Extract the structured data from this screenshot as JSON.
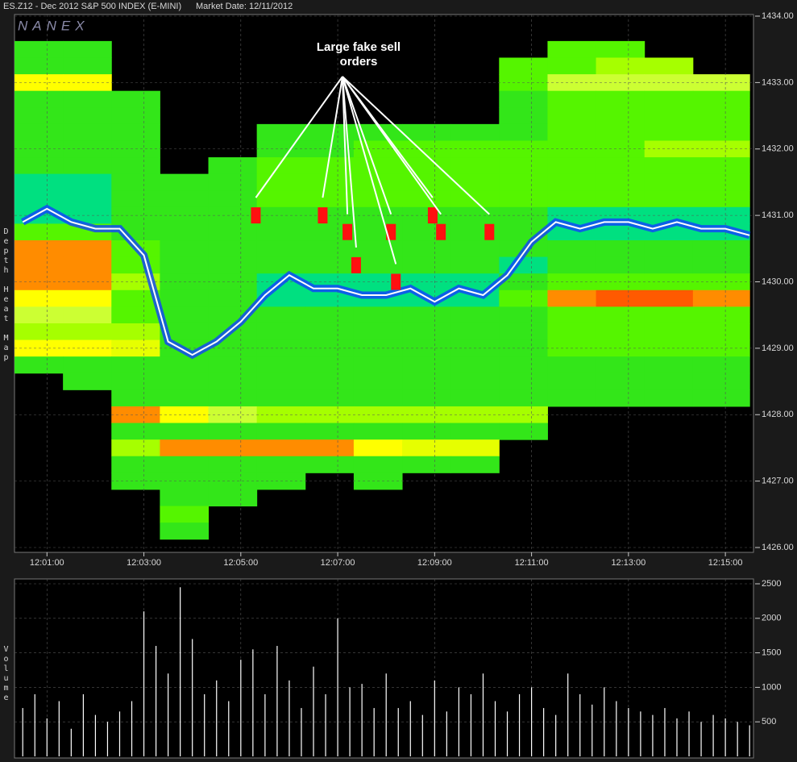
{
  "chart_data": [
    {
      "type": "heatmap",
      "title": "ES.Z12 - Dec 2012 S&P 500 INDEX (E-MINI)",
      "subtitle": "Market Date: 12/11/2012",
      "watermark": "NANEX",
      "y_label": "Depth Heat Map",
      "annotation": "Large fake sell orders",
      "xlim": [
        0.33,
        15.58
      ],
      "xticks": [
        {
          "value": 1,
          "label": "12:01:00"
        },
        {
          "value": 3,
          "label": "12:03:00"
        },
        {
          "value": 5,
          "label": "12:05:00"
        },
        {
          "value": 7,
          "label": "12:07:00"
        },
        {
          "value": 9,
          "label": "12:09:00"
        },
        {
          "value": 11,
          "label": "12:11:00"
        },
        {
          "value": 13,
          "label": "12:13:00"
        },
        {
          "value": 15,
          "label": "12:15:00"
        }
      ],
      "ylim": [
        1426,
        1434
      ],
      "yticks": [
        {
          "value": 1426,
          "label": "1426.00"
        },
        {
          "value": 1427,
          "label": "1427.00"
        },
        {
          "value": 1428,
          "label": "1428.00"
        },
        {
          "value": 1429,
          "label": "1429.00"
        },
        {
          "value": 1430,
          "label": "1430.00"
        },
        {
          "value": 1431,
          "label": "1431.00"
        },
        {
          "value": 1432,
          "label": "1432.00"
        },
        {
          "value": 1433,
          "label": "1433.00"
        },
        {
          "value": 1434,
          "label": "1434.00"
        }
      ],
      "grid": true,
      "x_edges": [
        0.33,
        1.33,
        2.33,
        3.33,
        4.33,
        5.33,
        6.33,
        7.33,
        8.33,
        9.33,
        10.33,
        11.33,
        12.33,
        13.33,
        14.33,
        15.5
      ],
      "levels": [
        1433.5,
        1433.25,
        1433.0,
        1432.75,
        1432.5,
        1432.25,
        1432.0,
        1431.75,
        1431.5,
        1431.25,
        1431.0,
        1430.75,
        1430.5,
        1430.25,
        1430.0,
        1429.75,
        1429.5,
        1429.25,
        1429.0,
        1428.75,
        1428.5,
        1428.25,
        1428.0,
        1427.75,
        1427.5,
        1427.25,
        1427.0,
        1426.75,
        1426.5,
        1426.25
      ],
      "zlim": [
        1,
        9
      ],
      "colorscale": [
        "#00e080",
        "#33e619",
        "#55f500",
        "#a6ff00",
        "#ccff33",
        "#e6ff00",
        "#ffff00",
        "#ff8c00",
        "#ff5a00"
      ],
      "z": [
        [
          2,
          2,
          null,
          null,
          null,
          null,
          null,
          null,
          null,
          null,
          null,
          3,
          3,
          null,
          null
        ],
        [
          2,
          2,
          null,
          null,
          null,
          null,
          null,
          null,
          null,
          null,
          3,
          3,
          4,
          4,
          null
        ],
        [
          7,
          7,
          null,
          null,
          null,
          null,
          null,
          null,
          null,
          null,
          3,
          5,
          5,
          5,
          5
        ],
        [
          2,
          2,
          2,
          null,
          null,
          null,
          null,
          null,
          null,
          null,
          2,
          3,
          3,
          3,
          3
        ],
        [
          2,
          2,
          2,
          null,
          null,
          null,
          null,
          null,
          null,
          null,
          2,
          3,
          3,
          3,
          3
        ],
        [
          2,
          2,
          2,
          null,
          null,
          2,
          2,
          2,
          2,
          2,
          2,
          3,
          3,
          3,
          3
        ],
        [
          2,
          2,
          2,
          null,
          null,
          2,
          2,
          3,
          3,
          3,
          3,
          3,
          3,
          4,
          4
        ],
        [
          2,
          2,
          2,
          null,
          2,
          3,
          3,
          3,
          3,
          3,
          3,
          3,
          3,
          3,
          3
        ],
        [
          1,
          1,
          2,
          2,
          2,
          3,
          3,
          3,
          3,
          3,
          3,
          3,
          3,
          3,
          3
        ],
        [
          1,
          1,
          2,
          2,
          2,
          3,
          3,
          3,
          3,
          3,
          3,
          3,
          3,
          3,
          3
        ],
        [
          1,
          1,
          2,
          2,
          2,
          2,
          2,
          2,
          2,
          2,
          2,
          1,
          1,
          1,
          1
        ],
        [
          3,
          3,
          2,
          2,
          2,
          2,
          2,
          2,
          2,
          2,
          2,
          1,
          1,
          1,
          1
        ],
        [
          8,
          8,
          3,
          2,
          2,
          2,
          2,
          2,
          2,
          2,
          2,
          2,
          2,
          2,
          2
        ],
        [
          8,
          8,
          3,
          2,
          2,
          2,
          2,
          2,
          2,
          2,
          1,
          2,
          2,
          2,
          2
        ],
        [
          8,
          8,
          4,
          2,
          2,
          1,
          1,
          1,
          1,
          1,
          2,
          3,
          3,
          3,
          3
        ],
        [
          7,
          7,
          3,
          2,
          2,
          1,
          1,
          1,
          1,
          1,
          3,
          8,
          9,
          9,
          8
        ],
        [
          5,
          5,
          3,
          2,
          2,
          2,
          2,
          2,
          2,
          2,
          2,
          3,
          3,
          3,
          3
        ],
        [
          4,
          4,
          4,
          2,
          2,
          2,
          2,
          2,
          2,
          2,
          2,
          3,
          3,
          3,
          3
        ],
        [
          7,
          7,
          6,
          2,
          2,
          2,
          2,
          2,
          2,
          2,
          2,
          3,
          3,
          3,
          3
        ],
        [
          2,
          2,
          2,
          2,
          2,
          2,
          2,
          2,
          2,
          2,
          2,
          2,
          2,
          2,
          2
        ],
        [
          null,
          2,
          2,
          2,
          2,
          2,
          2,
          2,
          2,
          2,
          2,
          2,
          2,
          2,
          2
        ],
        [
          null,
          null,
          2,
          2,
          2,
          2,
          2,
          2,
          2,
          2,
          2,
          2,
          2,
          2,
          2
        ],
        [
          null,
          null,
          8,
          7,
          5,
          4,
          4,
          4,
          4,
          4,
          4,
          null,
          null,
          null,
          null
        ],
        [
          null,
          null,
          2,
          2,
          2,
          2,
          2,
          2,
          2,
          2,
          2,
          null,
          null,
          null,
          null
        ],
        [
          null,
          null,
          4,
          8,
          8,
          8,
          8,
          7,
          6,
          6,
          null,
          null,
          null,
          null,
          null
        ],
        [
          null,
          null,
          2,
          2,
          2,
          2,
          2,
          2,
          2,
          2,
          null,
          null,
          null,
          null,
          null
        ],
        [
          null,
          null,
          2,
          2,
          2,
          2,
          null,
          2,
          null,
          null,
          null,
          null,
          null,
          null,
          null
        ],
        [
          null,
          null,
          null,
          2,
          2,
          null,
          null,
          null,
          null,
          null,
          null,
          null,
          null,
          null,
          null
        ],
        [
          null,
          null,
          null,
          3,
          null,
          null,
          null,
          null,
          null,
          null,
          null,
          null,
          null,
          null,
          null
        ],
        [
          null,
          null,
          null,
          2,
          null,
          null,
          null,
          null,
          null,
          null,
          null,
          null,
          null,
          null,
          null
        ]
      ],
      "large_orders": {
        "color": "#ff1010",
        "x": [
          5.31,
          6.69,
          7.2,
          7.38,
          8.1,
          8.2,
          8.96,
          9.13,
          10.13
        ],
        "values": [
          1431.0,
          1431.0,
          1430.75,
          1430.25,
          1430.75,
          1430.0,
          1431.0,
          1430.75,
          1430.75
        ]
      },
      "series": [
        {
          "color": "#ffffff",
          "halo": "#1040ff",
          "x": [
            0.5,
            1,
            1.5,
            2,
            2.5,
            3,
            3.5,
            4,
            4.5,
            5,
            5.5,
            6,
            6.5,
            7,
            7.5,
            8,
            8.5,
            9,
            9.5,
            10,
            10.5,
            11,
            11.5,
            12,
            12.5,
            13,
            13.5,
            14,
            14.5,
            15,
            15.5
          ],
          "values": [
            1430.9,
            1431.1,
            1430.9,
            1430.8,
            1430.8,
            1430.4,
            1429.1,
            1428.9,
            1429.1,
            1429.4,
            1429.8,
            1430.1,
            1429.9,
            1429.9,
            1429.8,
            1429.8,
            1429.9,
            1429.7,
            1429.9,
            1429.8,
            1430.1,
            1430.6,
            1430.9,
            1430.8,
            1430.9,
            1430.9,
            1430.8,
            1430.9,
            1430.8,
            1430.8,
            1430.7
          ]
        }
      ]
    },
    {
      "type": "bar",
      "y_label": "Volume",
      "color": "#ffffff",
      "xlim": [
        0.33,
        15.58
      ],
      "ylim": [
        0,
        2500
      ],
      "yticks": [
        500,
        1000,
        1500,
        2000,
        2500
      ],
      "grid": true,
      "x": [
        0.5,
        0.75,
        1,
        1.25,
        1.5,
        1.75,
        2,
        2.25,
        2.5,
        2.75,
        3,
        3.25,
        3.5,
        3.75,
        4,
        4.25,
        4.5,
        4.75,
        5,
        5.25,
        5.5,
        5.75,
        6,
        6.25,
        6.5,
        6.75,
        7,
        7.25,
        7.5,
        7.75,
        8,
        8.25,
        8.5,
        8.75,
        9,
        9.25,
        9.5,
        9.75,
        10,
        10.25,
        10.5,
        10.75,
        11,
        11.25,
        11.5,
        11.75,
        12,
        12.25,
        12.5,
        12.75,
        13,
        13.25,
        13.5,
        13.75,
        14,
        14.25,
        14.5,
        14.75,
        15,
        15.25,
        15.5
      ],
      "values": [
        700,
        900,
        550,
        800,
        400,
        900,
        600,
        500,
        650,
        800,
        2100,
        1600,
        1200,
        2450,
        1700,
        900,
        1100,
        800,
        1400,
        1550,
        900,
        1600,
        1100,
        700,
        1300,
        900,
        2000,
        1000,
        1050,
        700,
        1200,
        700,
        800,
        600,
        1100,
        650,
        1000,
        900,
        1200,
        800,
        650,
        900,
        1000,
        700,
        600,
        1200,
        900,
        750,
        1000,
        800,
        700,
        650,
        600,
        700,
        550,
        650,
        500,
        600,
        550,
        500,
        450
      ]
    }
  ]
}
